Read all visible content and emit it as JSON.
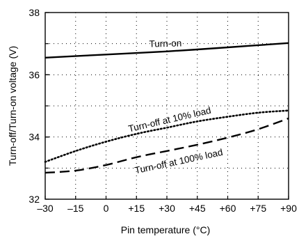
{
  "chart_data": {
    "type": "line",
    "title": "",
    "xlabel": "Pin temperature (°C)",
    "ylabel": "Turn-off/Turn-on voltage (V)",
    "xlim": [
      -30,
      90
    ],
    "ylim": [
      32,
      38
    ],
    "x_ticks": [
      -30,
      -15,
      0,
      15,
      30,
      45,
      60,
      75,
      90
    ],
    "x_tick_labels": [
      "–30",
      "–15",
      "0",
      "+15",
      "+30",
      "+45",
      "+60",
      "+75",
      "+90"
    ],
    "y_ticks": [
      32,
      34,
      36,
      38
    ],
    "y_tick_labels": [
      "32",
      "34",
      "36",
      "38"
    ],
    "grid": true,
    "legend": "none",
    "series": [
      {
        "label": "Turn-on",
        "style": "solid",
        "x": [
          -30,
          0,
          30,
          60,
          90
        ],
        "y": [
          36.55,
          36.65,
          36.75,
          36.88,
          37.02
        ]
      },
      {
        "label": "Turn-off at 10% load",
        "style": "dotted",
        "x": [
          -30,
          -15,
          0,
          15,
          30,
          45,
          60,
          75,
          90
        ],
        "y": [
          33.2,
          33.55,
          33.85,
          34.1,
          34.3,
          34.5,
          34.65,
          34.78,
          34.85
        ]
      },
      {
        "label": "Turn-off at 100% load",
        "style": "dashed",
        "x": [
          -30,
          -15,
          0,
          15,
          30,
          45,
          60,
          75,
          90
        ],
        "y": [
          32.85,
          32.92,
          33.1,
          33.35,
          33.55,
          33.75,
          33.98,
          34.25,
          34.6
        ]
      }
    ]
  }
}
